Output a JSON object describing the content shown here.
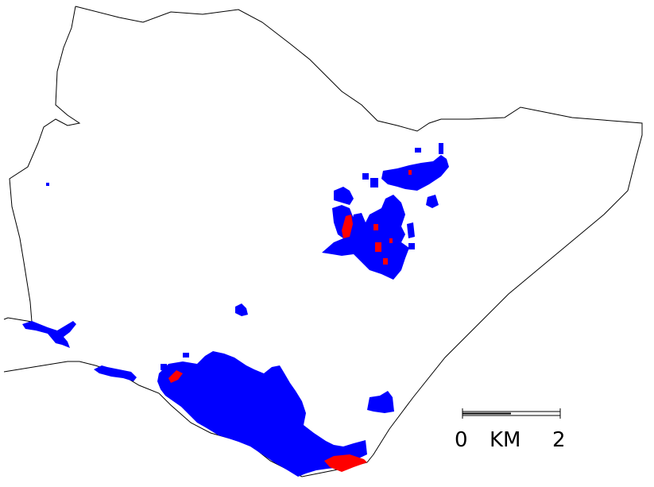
{
  "map": {
    "colors": {
      "boundary": "#000000",
      "background": "#ffffff",
      "class_blue": "#0000ff",
      "class_red": "#ff0000"
    },
    "scale_bar": {
      "start_label": "0",
      "unit_label": "KM",
      "end_label": "2"
    }
  }
}
